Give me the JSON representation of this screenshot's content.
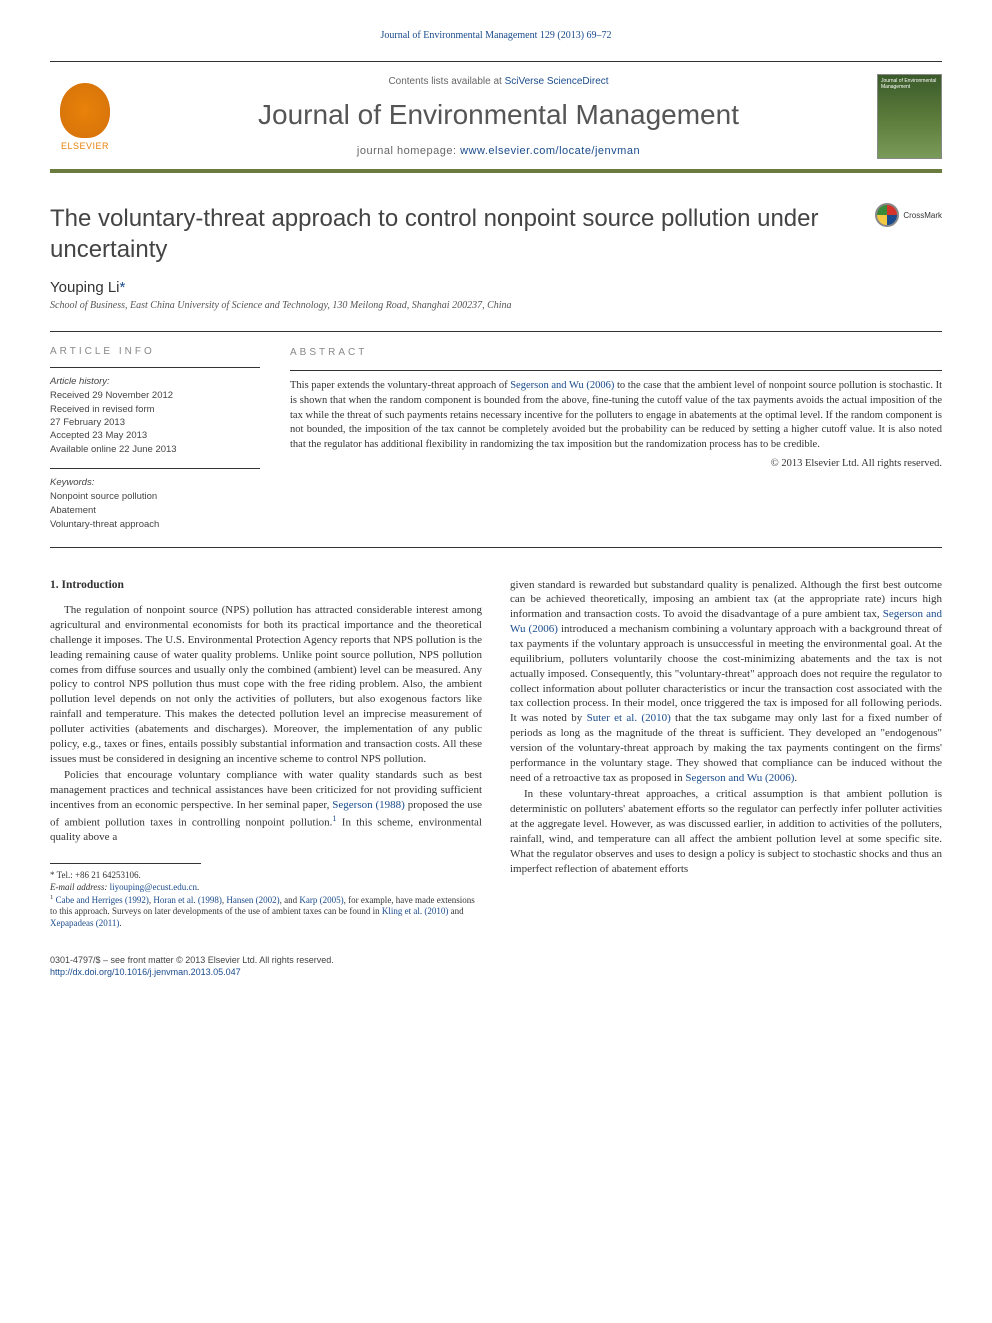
{
  "running_header": "Journal of Environmental Management 129 (2013) 69–72",
  "masthead": {
    "contents_prefix": "Contents lists available at ",
    "contents_link": "SciVerse ScienceDirect",
    "journal_name": "Journal of Environmental Management",
    "homepage_prefix": "journal homepage: ",
    "homepage_link": "www.elsevier.com/locate/jenvman",
    "publisher": "ELSEVIER",
    "cover_title": "Journal of Environmental Management"
  },
  "crossmark": "CrossMark",
  "title": "The voluntary-threat approach to control nonpoint source pollution under uncertainty",
  "author": {
    "name": "Youping Li",
    "marker": "*"
  },
  "affiliation": "School of Business, East China University of Science and Technology, 130 Meilong Road, Shanghai 200237, China",
  "article_info": {
    "label": "ARTICLE INFO",
    "history_label": "Article history:",
    "history": [
      "Received 29 November 2012",
      "Received in revised form",
      "27 February 2013",
      "Accepted 23 May 2013",
      "Available online 22 June 2013"
    ],
    "keywords_label": "Keywords:",
    "keywords": [
      "Nonpoint source pollution",
      "Abatement",
      "Voluntary-threat approach"
    ]
  },
  "abstract": {
    "label": "ABSTRACT",
    "text_parts": {
      "p1": "This paper extends the voluntary-threat approach of ",
      "l1": "Segerson and Wu (2006)",
      "p2": " to the case that the ambient level of nonpoint source pollution is stochastic. It is shown that when the random component is bounded from the above, fine-tuning the cutoff value of the tax payments avoids the actual imposition of the tax while the threat of such payments retains necessary incentive for the polluters to engage in abatements at the optimal level. If the random component is not bounded, the imposition of the tax cannot be completely avoided but the probability can be reduced by setting a higher cutoff value. It is also noted that the regulator has additional flexibility in randomizing the tax imposition but the randomization process has to be credible."
    },
    "copyright": "© 2013 Elsevier Ltd. All rights reserved."
  },
  "body": {
    "section_heading": "1. Introduction",
    "col1": {
      "para1": "The regulation of nonpoint source (NPS) pollution has attracted considerable interest among agricultural and environmental economists for both its practical importance and the theoretical challenge it imposes. The U.S. Environmental Protection Agency reports that NPS pollution is the leading remaining cause of water quality problems. Unlike point source pollution, NPS pollution comes from diffuse sources and usually only the combined (ambient) level can be measured. Any policy to control NPS pollution thus must cope with the free riding problem. Also, the ambient pollution level depends on not only the activities of polluters, but also exogenous factors like rainfall and temperature. This makes the detected pollution level an imprecise measurement of polluter activities (abatements and discharges). Moreover, the implementation of any public policy, e.g., taxes or fines, entails possibly substantial information and transaction costs. All these issues must be considered in designing an incentive scheme to control NPS pollution.",
      "para2_a": "Policies that encourage voluntary compliance with water quality standards such as best management practices and technical assistances have been criticized for not providing sufficient incentives from an economic perspective. In her seminal paper, ",
      "para2_l1": "Segerson (1988)",
      "para2_b": " proposed the use of ambient pollution taxes in controlling nonpoint pollution.",
      "para2_sup": "1",
      "para2_c": " In this scheme, environmental quality above a"
    },
    "col2": {
      "para1_a": "given standard is rewarded but substandard quality is penalized. Although the first best outcome can be achieved theoretically, imposing an ambient tax (at the appropriate rate) incurs high information and transaction costs. To avoid the disadvantage of a pure ambient tax, ",
      "para1_l1": "Segerson and Wu (2006)",
      "para1_b": " introduced a mechanism combining a voluntary approach with a background threat of tax payments if the voluntary approach is unsuccessful in meeting the environmental goal. At the equilibrium, polluters voluntarily choose the cost-minimizing abatements and the tax is not actually imposed. Consequently, this \"voluntary-threat\" approach does not require the regulator to collect information about polluter characteristics or incur the transaction cost associated with the tax collection process. In their model, once triggered the tax is imposed for all following periods. It was noted by ",
      "para1_l2": "Suter et al. (2010)",
      "para1_c": " that the tax subgame may only last for a fixed number of periods as long as the magnitude of the threat is sufficient. They developed an \"endogenous\" version of the voluntary-threat approach by making the tax payments contingent on the firms' performance in the voluntary stage. They showed that compliance can be induced without the need of a retroactive tax as proposed in ",
      "para1_l3": "Segerson and Wu (2006)",
      "para1_d": ".",
      "para2": "In these voluntary-threat approaches, a critical assumption is that ambient pollution is deterministic on polluters' abatement efforts so the regulator can perfectly infer polluter activities at the aggregate level. However, as was discussed earlier, in addition to activities of the polluters, rainfall, wind, and temperature can all affect the ambient pollution level at some specific site. What the regulator observes and uses to design a policy is subject to stochastic shocks and thus an imperfect reflection of abatement efforts"
    }
  },
  "footnotes": {
    "corr": "* Tel.: +86 21 64253106.",
    "email_label": "E-mail address: ",
    "email": "liyouping@ecust.edu.cn",
    "email_suffix": ".",
    "fn1_sup": "1",
    "fn1_a": " ",
    "fn1_l1": "Cabe and Herriges (1992)",
    "fn1_b": ", ",
    "fn1_l2": "Horan et al. (1998)",
    "fn1_c": ", ",
    "fn1_l3": "Hansen (2002)",
    "fn1_d": ", and ",
    "fn1_l4": "Karp (2005)",
    "fn1_e": ", for example, have made extensions to this approach. Surveys on later developments of the use of ambient taxes can be found in ",
    "fn1_l5": "Kling et al. (2010)",
    "fn1_f": " and ",
    "fn1_l6": "Xepapadeas (2011)",
    "fn1_g": "."
  },
  "footer": {
    "issn": "0301-4797/$ – see front matter © 2013 Elsevier Ltd. All rights reserved.",
    "doi": "http://dx.doi.org/10.1016/j.jenvman.2013.05.047"
  },
  "colors": {
    "link": "#1a4b8c",
    "accent_rule": "#6b7a3e",
    "elsevier_orange": "#e8820a",
    "text": "#333333",
    "muted": "#666666"
  },
  "typography": {
    "running_header_pt": 10,
    "journal_name_pt": 28,
    "title_pt": 24,
    "author_pt": 15,
    "body_pt": 11,
    "abstract_pt": 10.5,
    "info_pt": 9.5,
    "footnote_pt": 9
  }
}
